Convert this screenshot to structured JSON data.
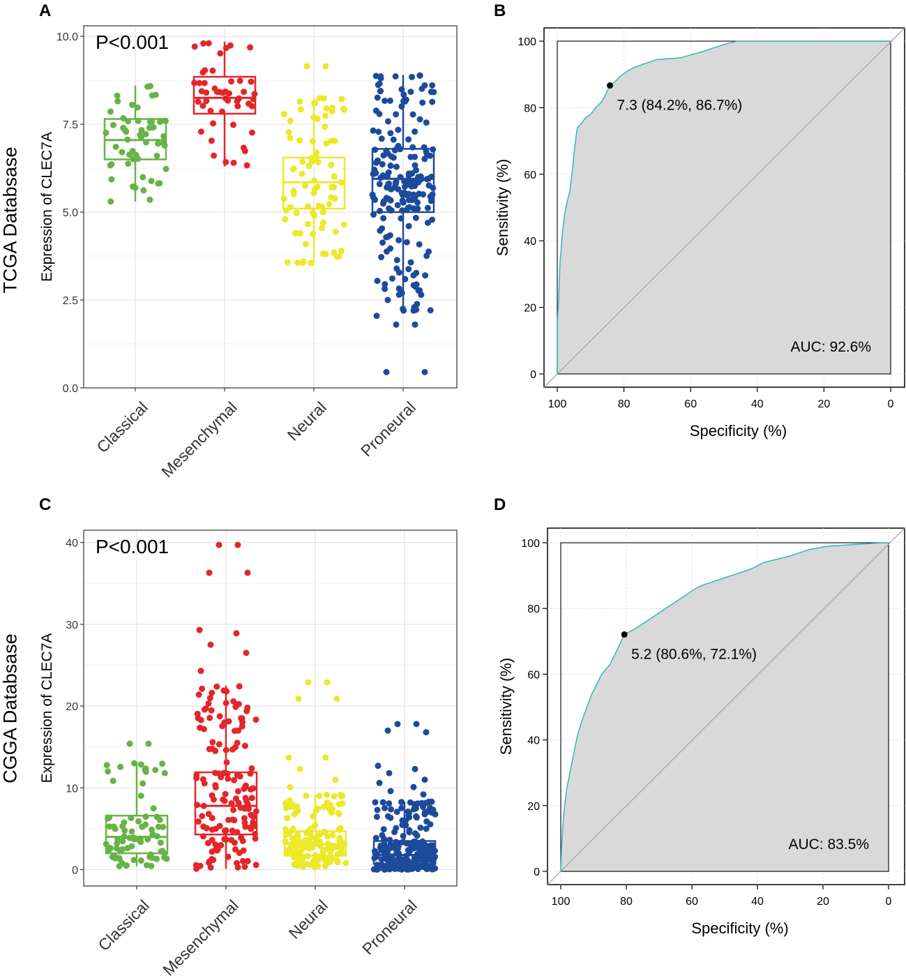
{
  "row_labels": {
    "top": "TCGA Databsase",
    "bottom": "CGGA Databsase"
  },
  "panel_letters": {
    "a": "A",
    "b": "B",
    "c": "C",
    "d": "D"
  },
  "chart_data": [
    {
      "panel": "A",
      "type": "box-jitter",
      "title": "",
      "annotation": "P<0.001",
      "xlabel": "",
      "ylabel": "Expression of CLEC7A",
      "ylim": [
        0,
        10.3
      ],
      "yticks": [
        0.0,
        2.5,
        5.0,
        7.5,
        10.0
      ],
      "ytick_labels": [
        "0.0",
        "2.5",
        "5.0",
        "7.5",
        "10.0"
      ],
      "categories": [
        "Classical",
        "Mesenchymal",
        "Neural",
        "Proneural"
      ],
      "colors": [
        "#67B346",
        "#E3262A",
        "#ECE82A",
        "#1D4A9B"
      ],
      "boxes": [
        {
          "q1": 6.5,
          "median": 7.05,
          "q3": 7.65,
          "low": 5.3,
          "high": 8.6,
          "n": 55
        },
        {
          "q1": 7.8,
          "median": 8.25,
          "q3": 8.85,
          "low": 6.3,
          "high": 9.85,
          "n": 50
        },
        {
          "q1": 5.1,
          "median": 5.85,
          "q3": 6.55,
          "low": 3.55,
          "high": 8.25,
          "n": 85
        },
        {
          "q1": 5.0,
          "median": 5.95,
          "q3": 6.8,
          "low": 2.2,
          "high": 8.9,
          "n": 200
        }
      ],
      "outliers": [
        {
          "category": 1,
          "values": []
        },
        {
          "category": 2,
          "values": [
            9.15,
            9.15
          ]
        },
        {
          "category": 3,
          "values": [
            1.8,
            1.8,
            0.45,
            0.45,
            2.05,
            2.2,
            2.5
          ]
        }
      ]
    },
    {
      "panel": "B",
      "type": "roc",
      "xlabel": "Specificity (%)",
      "ylabel": "Sensitivity (%)",
      "xlim": [
        100,
        0
      ],
      "ylim": [
        0,
        100
      ],
      "xticks": [
        100,
        80,
        60,
        40,
        20,
        0
      ],
      "yticks": [
        0,
        20,
        40,
        60,
        80,
        100
      ],
      "curve_color": "#3FB8BE",
      "fill_color": "#D9D9D9",
      "curve": [
        [
          100,
          0
        ],
        [
          100,
          15
        ],
        [
          99.6,
          22
        ],
        [
          99.2,
          33
        ],
        [
          98.5,
          42
        ],
        [
          97.8,
          48
        ],
        [
          97,
          52
        ],
        [
          96.2,
          55
        ],
        [
          95.5,
          61
        ],
        [
          94.8,
          68
        ],
        [
          94,
          74
        ],
        [
          93,
          75
        ],
        [
          91.5,
          77
        ],
        [
          90,
          78
        ],
        [
          88.5,
          80
        ],
        [
          86.5,
          82
        ],
        [
          84.2,
          86.7
        ],
        [
          82.5,
          88
        ],
        [
          81,
          89.5
        ],
        [
          79,
          91
        ],
        [
          77,
          92
        ],
        [
          74.5,
          93
        ],
        [
          70,
          94.5
        ],
        [
          63,
          95
        ],
        [
          56,
          97
        ],
        [
          53,
          98
        ],
        [
          50,
          99
        ],
        [
          46,
          100
        ],
        [
          0,
          100
        ]
      ],
      "cutoff": {
        "x": 84.2,
        "y": 86.7,
        "label": "7.3 (84.2%, 86.7%)"
      },
      "auc_label": "AUC: 92.6%"
    },
    {
      "panel": "C",
      "type": "box-jitter",
      "title": "",
      "annotation": "P<0.001",
      "xlabel": "",
      "ylabel": "Expression of CLEC7A",
      "ylim": [
        -2,
        41.5
      ],
      "yticks": [
        0,
        10,
        20,
        30,
        40
      ],
      "ytick_labels": [
        "0",
        "10",
        "20",
        "30",
        "40"
      ],
      "categories": [
        "Classical",
        "Mesenchymal",
        "Neural",
        "Proneural"
      ],
      "colors": [
        "#67B346",
        "#E3262A",
        "#ECE82A",
        "#1D4A9B"
      ],
      "boxes": [
        {
          "q1": 2.0,
          "median": 4.0,
          "q3": 6.6,
          "low": 0.4,
          "high": 13.2,
          "n": 80
        },
        {
          "q1": 4.3,
          "median": 7.8,
          "q3": 11.9,
          "low": 0.1,
          "high": 22.5,
          "n": 150
        },
        {
          "q1": 1.7,
          "median": 3.1,
          "q3": 4.7,
          "low": 0.3,
          "high": 9.2,
          "n": 150
        },
        {
          "q1": 0.7,
          "median": 1.8,
          "q3": 3.5,
          "low": 0.0,
          "high": 8.3,
          "n": 230
        }
      ],
      "outliers": [
        {
          "category": 0,
          "values": [
            15.4,
            15.4
          ]
        },
        {
          "category": 1,
          "values": [
            39.7,
            39.7,
            36.3,
            36.3,
            29.3,
            28.9,
            27.5,
            26.5,
            24.3
          ]
        },
        {
          "category": 2,
          "values": [
            22.9,
            22.9,
            20.9,
            20.9,
            13.7,
            13.7,
            12.3,
            11.0,
            10.1
          ]
        },
        {
          "category": 3,
          "values": [
            17.8,
            17.8,
            17.0,
            16.8,
            12.7,
            12.3,
            11.8,
            11.0,
            10.6,
            10.1,
            9.6,
            9.2
          ]
        }
      ]
    },
    {
      "panel": "D",
      "type": "roc",
      "xlabel": "Specificity (%)",
      "ylabel": "Sensitivity (%)",
      "xlim": [
        100,
        0
      ],
      "ylim": [
        0,
        100
      ],
      "xticks": [
        100,
        80,
        60,
        40,
        20,
        0
      ],
      "yticks": [
        0,
        20,
        40,
        60,
        80,
        100
      ],
      "curve_color": "#3FB8BE",
      "fill_color": "#D9D9D9",
      "curve": [
        [
          100,
          0
        ],
        [
          99.7,
          8
        ],
        [
          99.3,
          15
        ],
        [
          98.8,
          20
        ],
        [
          98.2,
          25
        ],
        [
          97.2,
          30
        ],
        [
          96.2,
          35
        ],
        [
          95,
          41
        ],
        [
          93.5,
          46
        ],
        [
          92,
          50
        ],
        [
          90.5,
          54
        ],
        [
          89,
          57
        ],
        [
          87.5,
          60
        ],
        [
          85,
          63
        ],
        [
          83,
          67
        ],
        [
          80.6,
          72.1
        ],
        [
          77,
          74
        ],
        [
          74,
          76
        ],
        [
          71,
          78
        ],
        [
          68,
          80
        ],
        [
          65,
          82
        ],
        [
          62,
          84
        ],
        [
          59,
          86
        ],
        [
          57,
          87
        ],
        [
          54,
          88
        ],
        [
          51,
          89
        ],
        [
          48,
          90
        ],
        [
          45,
          91
        ],
        [
          42,
          92
        ],
        [
          38,
          94
        ],
        [
          34,
          95
        ],
        [
          30,
          96
        ],
        [
          24,
          98
        ],
        [
          18,
          99
        ],
        [
          10,
          99.5
        ],
        [
          1,
          100
        ],
        [
          0,
          100
        ]
      ],
      "cutoff": {
        "x": 80.6,
        "y": 72.1,
        "label": "5.2 (80.6%, 72.1%)"
      },
      "auc_label": "AUC: 83.5%"
    }
  ]
}
